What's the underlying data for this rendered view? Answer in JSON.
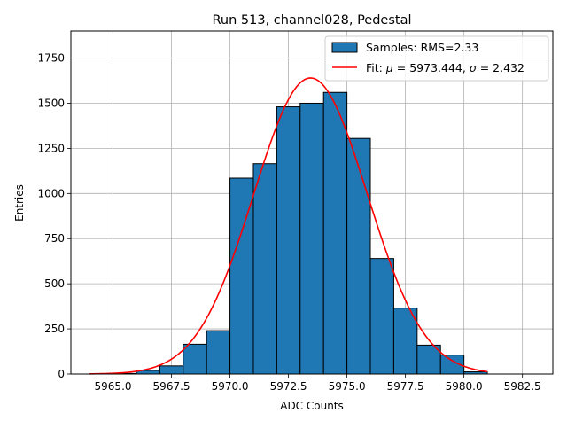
{
  "chart_data": {
    "type": "bar",
    "title": "Run 513, channel028, Pedestal",
    "xlabel": "ADC Counts",
    "ylabel": "Entries",
    "xlim": [
      5963.2,
      5983.8
    ],
    "ylim": [
      0,
      1900
    ],
    "xticks": [
      5965.0,
      5967.5,
      5970.0,
      5972.5,
      5975.0,
      5977.5,
      5980.0,
      5982.5
    ],
    "xtick_labels": [
      "5965.0",
      "5967.5",
      "5970.0",
      "5972.5",
      "5975.0",
      "5977.5",
      "5980.0",
      "5982.5"
    ],
    "yticks": [
      0,
      250,
      500,
      750,
      1000,
      1250,
      1500,
      1750
    ],
    "ytick_labels": [
      "0",
      "250",
      "500",
      "750",
      "1000",
      "1250",
      "1500",
      "1750"
    ],
    "grid": true,
    "legend_position": "top-right",
    "bar_color": "#1f77b4",
    "fit_color": "#ff0000",
    "bins": [
      {
        "x0": 5965,
        "x1": 5966,
        "value": 3
      },
      {
        "x0": 5966,
        "x1": 5967,
        "value": 20
      },
      {
        "x0": 5967,
        "x1": 5968,
        "value": 45
      },
      {
        "x0": 5968,
        "x1": 5969,
        "value": 165
      },
      {
        "x0": 5969,
        "x1": 5970,
        "value": 240
      },
      {
        "x0": 5970,
        "x1": 5971,
        "value": 1085
      },
      {
        "x0": 5971,
        "x1": 5972,
        "value": 1165
      },
      {
        "x0": 5972,
        "x1": 5973,
        "value": 1480
      },
      {
        "x0": 5973,
        "x1": 5974,
        "value": 1500
      },
      {
        "x0": 5974,
        "x1": 5975,
        "value": 1560
      },
      {
        "x0": 5975,
        "x1": 5976,
        "value": 1305
      },
      {
        "x0": 5976,
        "x1": 5977,
        "value": 640
      },
      {
        "x0": 5977,
        "x1": 5978,
        "value": 365
      },
      {
        "x0": 5978,
        "x1": 5979,
        "value": 160
      },
      {
        "x0": 5979,
        "x1": 5980,
        "value": 105
      },
      {
        "x0": 5980,
        "x1": 5981,
        "value": 12
      }
    ],
    "fit": {
      "mu": 5973.444,
      "sigma": 2.432,
      "amplitude": 1640,
      "x_range": [
        5964,
        5981
      ]
    },
    "legend": {
      "samples_label": "Samples: RMS=2.33",
      "fit_prefix": "Fit: ",
      "fit_mu_symbol": "μ",
      "fit_mid": " = 5973.444, ",
      "fit_sigma_symbol": "σ",
      "fit_suffix": " = 2.432"
    }
  }
}
